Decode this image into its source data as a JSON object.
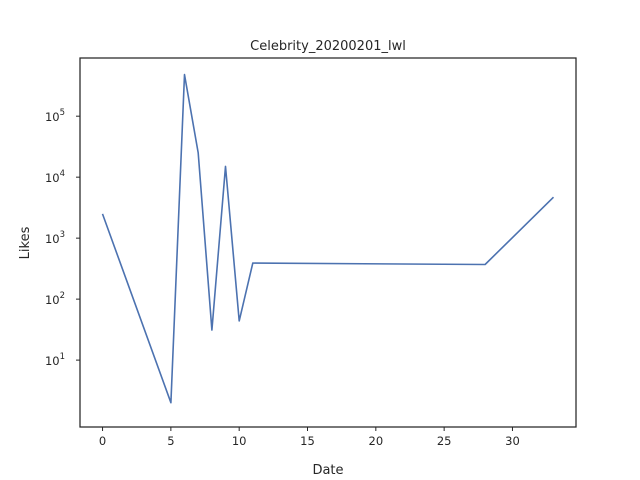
{
  "chart_data": {
    "type": "line",
    "title": "Celebrity_20200201_lwl",
    "xlabel": "Date",
    "ylabel": "Likes",
    "xlim": [
      -1.65,
      34.65
    ],
    "ylim": [
      0.8,
      900000
    ],
    "yscale": "log",
    "grid": false,
    "x_ticks": [
      0,
      5,
      10,
      15,
      20,
      25,
      30
    ],
    "y_ticks": [
      {
        "value": 10,
        "base": "10",
        "exp": "1"
      },
      {
        "value": 100,
        "base": "10",
        "exp": "2"
      },
      {
        "value": 1000,
        "base": "10",
        "exp": "3"
      },
      {
        "value": 10000,
        "base": "10",
        "exp": "4"
      },
      {
        "value": 100000,
        "base": "10",
        "exp": "5"
      }
    ],
    "series": [
      {
        "color": "#4c72b0",
        "points": [
          {
            "x": 0,
            "y": 2500
          },
          {
            "x": 5,
            "y": 2
          },
          {
            "x": 6,
            "y": 480000
          },
          {
            "x": 7,
            "y": 25000
          },
          {
            "x": 8,
            "y": 31
          },
          {
            "x": 9,
            "y": 15000
          },
          {
            "x": 10,
            "y": 44
          },
          {
            "x": 11,
            "y": 390
          },
          {
            "x": 28,
            "y": 370
          },
          {
            "x": 33,
            "y": 4700
          }
        ]
      }
    ]
  }
}
